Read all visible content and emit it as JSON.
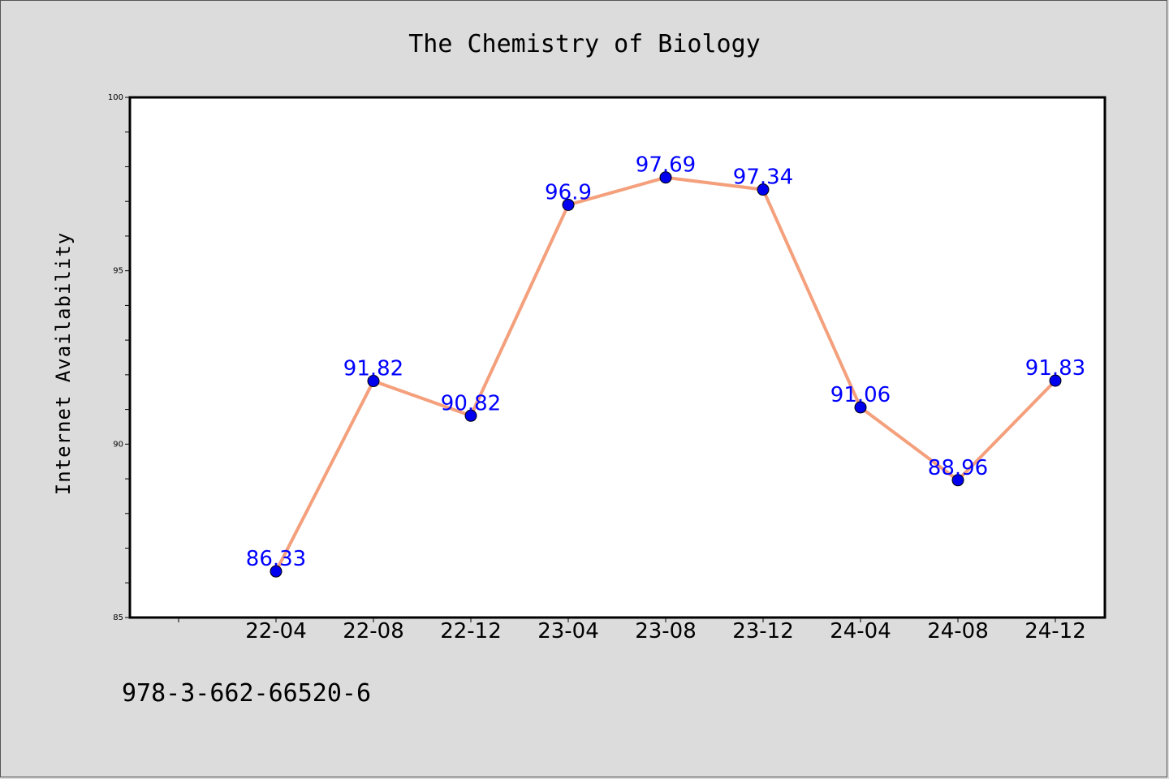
{
  "chart_data": {
    "type": "line",
    "title": "The Chemistry of Biology",
    "xlabel": "",
    "ylabel": "Internet Availability",
    "categories": [
      "22-04",
      "22-08",
      "22-12",
      "23-04",
      "23-08",
      "23-12",
      "24-04",
      "24-08",
      "24-12"
    ],
    "series": [
      {
        "values": [
          86.33,
          91.82,
          90.82,
          96.9,
          97.69,
          97.34,
          91.06,
          88.96,
          91.83
        ],
        "labels": [
          "86.33",
          "91.82",
          "90.82",
          "96.9",
          "97.69",
          "97.34",
          "91.06",
          "88.96",
          "91.83"
        ],
        "line_color": "#f4a07c",
        "marker_color": "#0000ee"
      }
    ],
    "ylim": [
      85,
      100
    ],
    "yticks": [
      "85",
      "90",
      "95",
      "100"
    ],
    "grid": false,
    "background": "#dcdcdc",
    "plot_background": "#ffffff",
    "label_color": "#0000ff"
  },
  "footer": {
    "text": "978-3-662-66520-6"
  }
}
